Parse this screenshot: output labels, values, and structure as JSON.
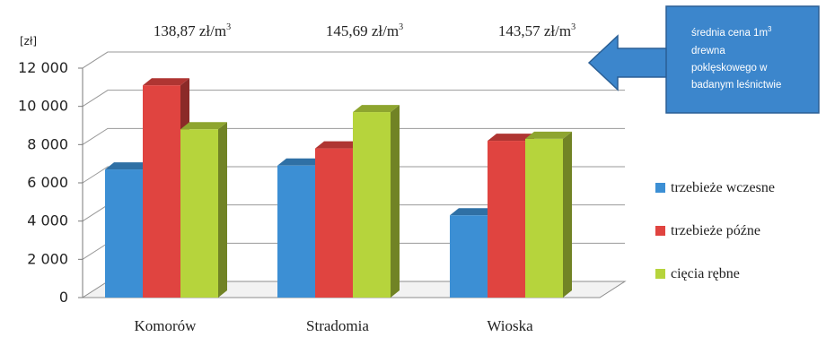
{
  "chart_data": {
    "type": "bar",
    "unit_label": "[zł]",
    "categories": [
      "Komorów",
      "Stradomia",
      "Wioska"
    ],
    "series": [
      {
        "name": "trzebieże wczesne",
        "values": [
          6700,
          6900,
          4300
        ],
        "color": "#3c8fd4"
      },
      {
        "name": "trzebieże późne",
        "values": [
          11100,
          7800,
          8200
        ],
        "color": "#e04440"
      },
      {
        "name": "cięcia rębne",
        "values": [
          8800,
          9700,
          8300
        ],
        "color": "#b6d43c"
      }
    ],
    "ylim": [
      0,
      12000
    ],
    "yticks": [
      "0",
      "2 000",
      "4 000",
      "6 000",
      "8 000",
      "10 000",
      "12 000"
    ],
    "price_labels": [
      {
        "value": "138,87 zł/m",
        "sup": "3"
      },
      {
        "value": "145,69 zł/m",
        "sup": "3"
      },
      {
        "value": "143,57 zł/m",
        "sup": "3"
      }
    ],
    "callout": {
      "lines": [
        "średnia cena 1m",
        "drewna",
        "poklęskowego w",
        "badanym leśnictwie"
      ],
      "sup": "3"
    },
    "legend_position": "right",
    "grid": true
  }
}
